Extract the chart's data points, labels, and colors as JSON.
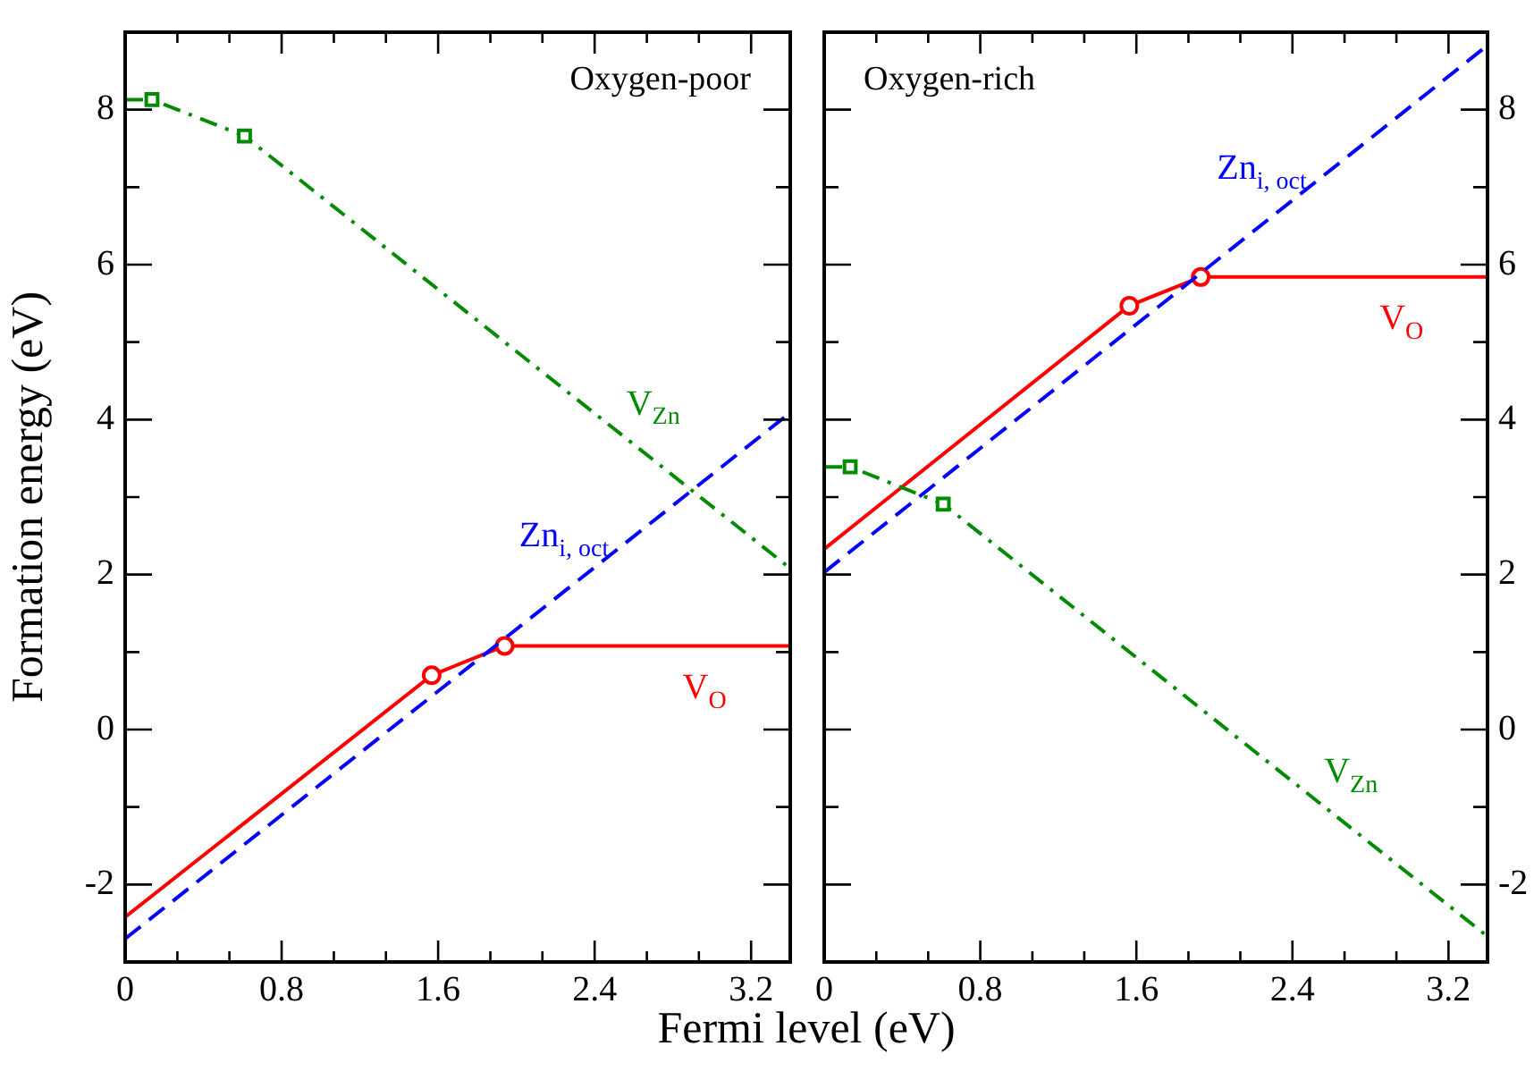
{
  "chart_data": [
    {
      "type": "line",
      "title": "Oxygen-poor",
      "xlabel": "Fermi level (eV)",
      "ylabel": "Formation energy (eV)",
      "xlim": [
        0,
        3.4
      ],
      "ylim": [
        -3,
        9
      ],
      "xticks": [
        0,
        {
          "value": 0.267,
          "label": null
        },
        {
          "value": 0.533,
          "label": null
        },
        0.8,
        {
          "value": 1.067,
          "label": null
        },
        {
          "value": 1.333,
          "label": null
        },
        1.6,
        {
          "value": 1.867,
          "label": null
        },
        {
          "value": 2.133,
          "label": null
        },
        2.4,
        {
          "value": 2.667,
          "label": null
        },
        {
          "value": 2.933,
          "label": null
        },
        3.2
      ],
      "yticks": [
        -2,
        {
          "value": -1,
          "label": null
        },
        0,
        {
          "value": 1,
          "label": null
        },
        2,
        {
          "value": 3,
          "label": null
        },
        4,
        {
          "value": 5,
          "label": null
        },
        6,
        {
          "value": 7,
          "label": null
        },
        8
      ],
      "series": [
        {
          "name": "V$_{Zn}$",
          "color": "#008b00",
          "line_style": "dashdot",
          "marker": "square",
          "x": [
            0,
            0.137,
            0.61,
            3.4
          ],
          "values": [
            8.13,
            8.13,
            7.66,
            2.08
          ]
        },
        {
          "name": "Zn$_{i, oct}$",
          "color": "#0000ff",
          "line_style": "dashed",
          "x": [
            0,
            3.4
          ],
          "values": [
            -2.7,
            4.09
          ]
        },
        {
          "name": "V$_{O}$",
          "color": "#ff0000",
          "line_style": "solid",
          "marker": "circle",
          "x": [
            0,
            1.567,
            1.94,
            3.4
          ],
          "values": [
            -2.42,
            0.7,
            1.08,
            1.08
          ]
        }
      ]
    },
    {
      "type": "line",
      "title": "Oxygen-rich",
      "xlim": [
        0,
        3.4
      ],
      "ylim": [
        -3,
        9
      ],
      "xticks": [
        0,
        {
          "value": 0.267,
          "label": null
        },
        {
          "value": 0.533,
          "label": null
        },
        0.8,
        {
          "value": 1.067,
          "label": null
        },
        {
          "value": 1.333,
          "label": null
        },
        1.6,
        {
          "value": 1.867,
          "label": null
        },
        {
          "value": 2.133,
          "label": null
        },
        2.4,
        {
          "value": 2.667,
          "label": null
        },
        {
          "value": 2.933,
          "label": null
        },
        3.2
      ],
      "yticks": [
        -2,
        {
          "value": -1,
          "label": null
        },
        0,
        {
          "value": 1,
          "label": null
        },
        2,
        {
          "value": 3,
          "label": null
        },
        4,
        {
          "value": 5,
          "label": null
        },
        6,
        {
          "value": 7,
          "label": null
        },
        8
      ],
      "series": [
        {
          "name": "V$_{Zn}$",
          "color": "#008b00",
          "line_style": "dashdot",
          "marker": "square",
          "x": [
            0,
            0.133,
            0.61,
            3.4
          ],
          "values": [
            3.39,
            3.39,
            2.91,
            -2.67
          ]
        },
        {
          "name": "Zn$_{i, oct}$",
          "color": "#0000ff",
          "line_style": "dashed",
          "x": [
            0,
            3.4
          ],
          "values": [
            2.03,
            8.83
          ]
        },
        {
          "name": "V$_{O}$",
          "color": "#ff0000",
          "line_style": "solid",
          "marker": "circle",
          "x": [
            0,
            1.564,
            1.93,
            3.4
          ],
          "values": [
            2.33,
            5.47,
            5.84,
            5.84
          ]
        }
      ]
    }
  ]
}
